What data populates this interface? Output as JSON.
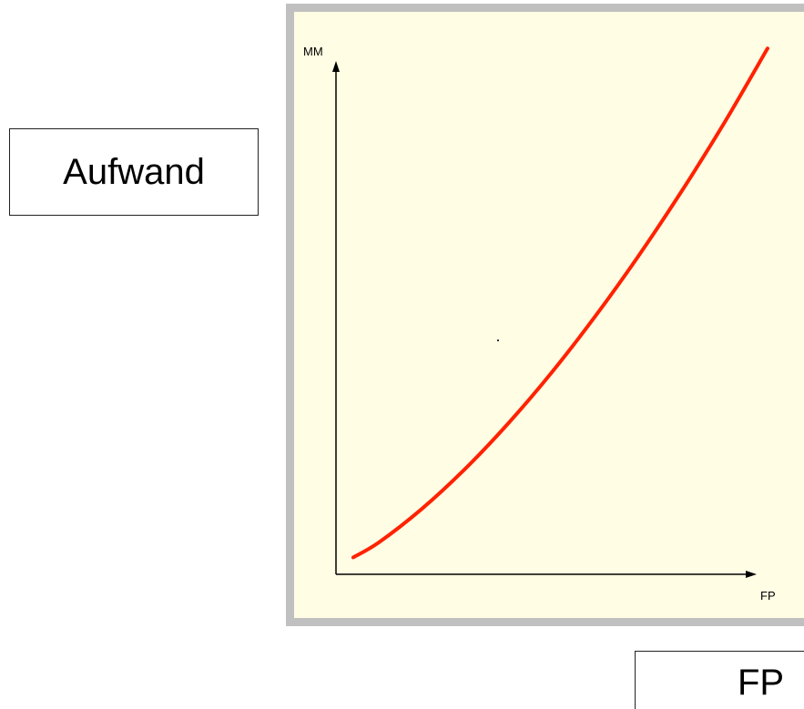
{
  "left_box": {
    "label": "Aufwand"
  },
  "bottom_box": {
    "label": "FP"
  },
  "chart_data": {
    "type": "line",
    "ylabel": "MM",
    "xlabel": "FP",
    "xlim": [
      0,
      100
    ],
    "ylim": [
      0,
      100
    ],
    "grid": false,
    "series": [
      {
        "color": "#ff2200",
        "x": [
          4,
          10,
          20,
          30,
          40,
          50,
          60,
          70,
          80,
          90,
          100
        ],
        "y": [
          3,
          5.7,
          11.7,
          18.8,
          26.9,
          35.9,
          45.8,
          56.5,
          68.0,
          80.3,
          93.5
        ]
      }
    ]
  },
  "colors": {
    "frame": "#c0c0c0",
    "plot_background": "#fffde4",
    "curve": "#ff2200",
    "axis": "#000000"
  }
}
